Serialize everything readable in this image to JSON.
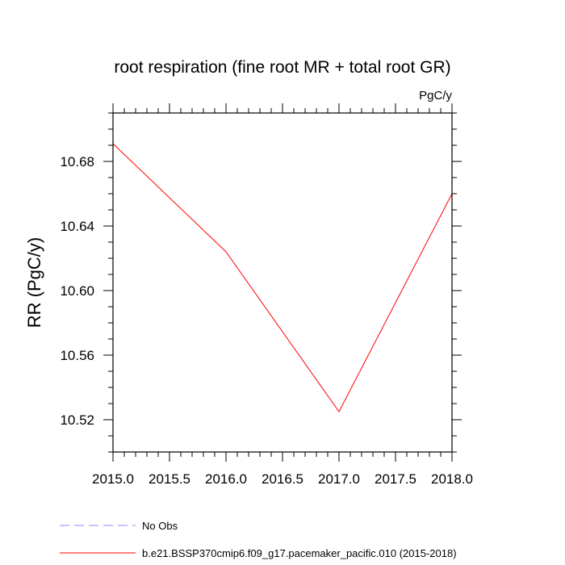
{
  "chart_data": {
    "type": "line",
    "title": "root respiration (fine root MR + total root GR)",
    "units": "PgC/y",
    "xlabel": "",
    "ylabel": "RR  (PgC/y)",
    "xlim": [
      2015.0,
      2018.0
    ],
    "ylim": [
      10.5,
      10.71
    ],
    "xticks": [
      2015.0,
      2015.5,
      2016.0,
      2016.5,
      2017.0,
      2017.5,
      2018.0
    ],
    "xtick_labels": [
      "2015.0",
      "2015.5",
      "2016.0",
      "2016.5",
      "2017.0",
      "2017.5",
      "2018.0"
    ],
    "yticks": [
      10.52,
      10.56,
      10.6,
      10.64,
      10.68
    ],
    "ytick_labels": [
      "10.52",
      "10.56",
      "10.60",
      "10.64",
      "10.68"
    ],
    "series": [
      {
        "name": "b.e21.BSSP370cmip6.f09_g17.pacemaker_pacific.010 (2015-2018)",
        "color": "#ff0000",
        "dash": "solid",
        "x": [
          2015,
          2016,
          2017,
          2018
        ],
        "values": [
          10.691,
          10.624,
          10.525,
          10.66
        ]
      }
    ],
    "legend": [
      {
        "label": "No Obs",
        "color": "#8a8aff",
        "dash": "dashed"
      },
      {
        "label": "b.e21.BSSP370cmip6.f09_g17.pacemaker_pacific.010 (2015-2018)",
        "color": "#ff0000",
        "dash": "solid"
      }
    ],
    "legend_position": "bottom"
  }
}
